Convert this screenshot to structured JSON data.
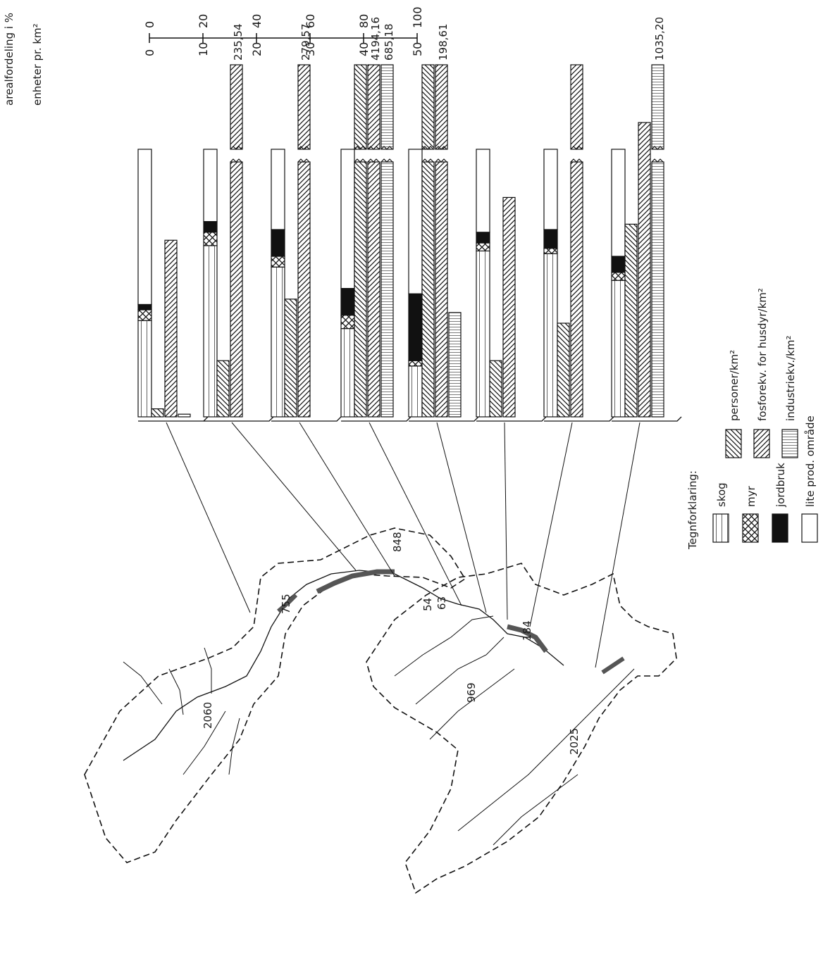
{
  "chart_data": {
    "type": "bar",
    "axis": {
      "pct_label": "arealfordeling i %",
      "pct_ticks": [
        "0",
        "20",
        "40",
        "60",
        "80",
        "100"
      ],
      "unit_label": "enheter pr. km²",
      "unit_ticks": [
        "0",
        "10",
        "20",
        "30",
        "40",
        "50"
      ],
      "pct_max": 100,
      "unit_max": 50
    },
    "legend": {
      "title": "Tegnforklaring:",
      "land": [
        {
          "key": "skog",
          "label": "skog"
        },
        {
          "key": "myr",
          "label": "myr"
        },
        {
          "key": "jordbruk",
          "label": "jordbruk"
        },
        {
          "key": "lite",
          "label": "lite prod. område"
        }
      ],
      "density": [
        {
          "key": "personer",
          "label": "personer/km²"
        },
        {
          "key": "fosfor",
          "label": "fosforekv. for husdyr/km²"
        },
        {
          "key": "industri",
          "label": "industriekv./km²"
        }
      ]
    },
    "groups": [
      {
        "skog": 36,
        "myr": 4,
        "jordbruk": 2,
        "lite": 58,
        "personer": 1.5,
        "fosfor": 33,
        "industri": 0.5,
        "labels": {}
      },
      {
        "skog": 64,
        "myr": 5,
        "jordbruk": 4,
        "lite": 27,
        "personer": 10.5,
        "fosfor": 235.54,
        "industri": 0,
        "labels": {
          "fosfor": "235,54"
        }
      },
      {
        "skog": 56,
        "myr": 4,
        "jordbruk": 10,
        "lite": 30,
        "personer": 22,
        "fosfor": 279.57,
        "industri": 0,
        "labels": {
          "fosfor": "279,57"
        }
      },
      {
        "skog": 33,
        "myr": 5,
        "jordbruk": 10,
        "lite": 52,
        "personer": 104,
        "fosfor": 4194.16,
        "industri": 685.18,
        "labels": {
          "fosfor": "4194,16",
          "industri": "685,18"
        }
      },
      {
        "skog": 19,
        "myr": 2,
        "jordbruk": 25,
        "lite": 54,
        "personer": 89,
        "fosfor": 198.61,
        "industri": 19.5,
        "labels": {
          "fosfor": "198,61"
        }
      },
      {
        "skog": 62,
        "myr": 3,
        "jordbruk": 4,
        "lite": 31,
        "personer": 10.5,
        "fosfor": 41,
        "industri": 0,
        "labels": {}
      },
      {
        "skog": 61,
        "myr": 2,
        "jordbruk": 7,
        "lite": 30,
        "personer": 17.5,
        "fosfor": 94,
        "industri": 0,
        "labels": {}
      },
      {
        "skog": 51,
        "myr": 3,
        "jordbruk": 6,
        "lite": 40,
        "personer": 36,
        "fosfor": 55,
        "industri": 1035.2,
        "labels": {
          "industri": "1035,20"
        }
      }
    ],
    "map_labels": [
      "2060",
      "755",
      "848",
      "54",
      "63",
      "969",
      "184",
      "2025"
    ]
  }
}
